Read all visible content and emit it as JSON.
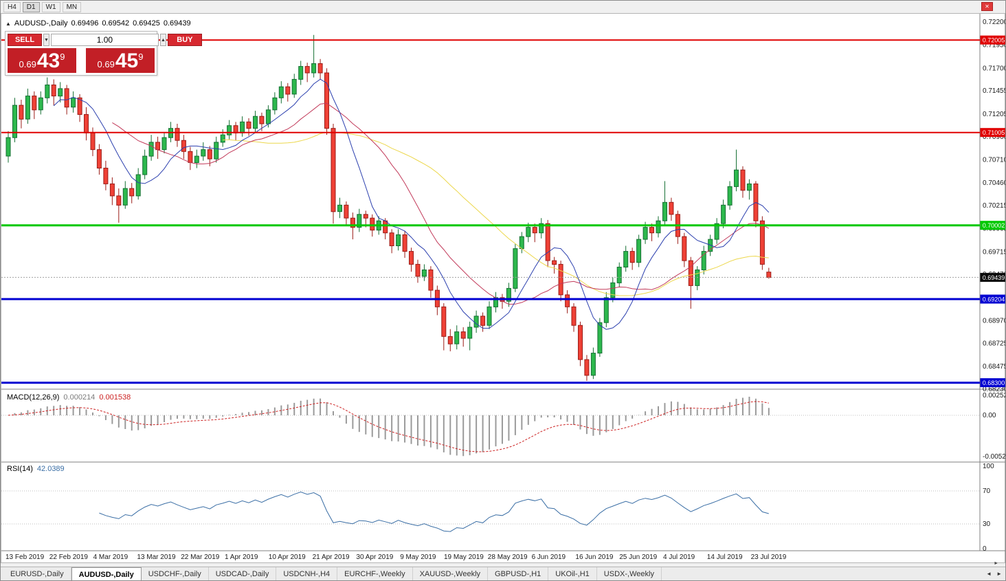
{
  "toolbar": {
    "timeframes": [
      {
        "label": "H4",
        "active": false
      },
      {
        "label": "D1",
        "active": true
      },
      {
        "label": "W1",
        "active": false
      },
      {
        "label": "MN",
        "active": false
      }
    ]
  },
  "window": {
    "close_glyph": "✕"
  },
  "icons": {
    "collapse": "▲",
    "step_down": "▼",
    "step_up": "▲",
    "scroll_right": "►",
    "tab_left": "◄",
    "tab_right": "►"
  },
  "chart_header": {
    "symbol": "AUDUSD-,Daily",
    "open": "0.69496",
    "high": "0.69542",
    "low": "0.69425",
    "close": "0.69439"
  },
  "trade_panel": {
    "sell_label": "SELL",
    "buy_label": "BUY",
    "volume": "1.00",
    "sell_price": {
      "prefix": "0.69",
      "big": "43",
      "sup": "9"
    },
    "buy_price": {
      "prefix": "0.69",
      "big": "45",
      "sup": "9"
    }
  },
  "price_axis": {
    "labels": [
      "0.72200",
      "0.71950",
      "0.71700",
      "0.71455",
      "0.71205",
      "0.70960",
      "0.70710",
      "0.70460",
      "0.70215",
      "0.69965",
      "0.69715",
      "0.69470",
      "0.69220",
      "0.68970",
      "0.68725",
      "0.68475",
      "0.68230"
    ]
  },
  "time_axis": {
    "labels": [
      "13 Feb 2019",
      "22 Feb 2019",
      "4 Mar 2019",
      "13 Mar 2019",
      "22 Mar 2019",
      "1 Apr 2019",
      "10 Apr 2019",
      "21 Apr 2019",
      "30 Apr 2019",
      "9 May 2019",
      "19 May 2019",
      "28 May 2019",
      "6 Jun 2019",
      "16 Jun 2019",
      "25 Jun 2019",
      "4 Jul 2019",
      "14 Jul 2019",
      "23 Jul 2019"
    ]
  },
  "levels": [
    {
      "label": "0.72005",
      "price": 0.72005,
      "color": "#e00000",
      "width": 2
    },
    {
      "label": "0.71005",
      "price": 0.71005,
      "color": "#e00000",
      "width": 2
    },
    {
      "label": "0.70002",
      "price": 0.70002,
      "color": "#00c800",
      "width": 3
    },
    {
      "label": "0.69204",
      "price": 0.69204,
      "color": "#0000d2",
      "width": 3
    },
    {
      "label": "0.68300",
      "price": 0.683,
      "color": "#0000d2",
      "width": 3
    }
  ],
  "current_price": {
    "label": "0.69439",
    "price": 0.69439,
    "bg": "#0a0a0a"
  },
  "indicators": {
    "macd": {
      "name": "MACD(12,26,9)",
      "value_main": "0.000214",
      "value_signal": "0.001538",
      "axis_labels": [
        "0.002522",
        "0.00",
        "-0.005234"
      ],
      "axis_values": [
        0.002522,
        0,
        -0.005234
      ],
      "fast": 12,
      "slow": 26,
      "signal": 9
    },
    "rsi": {
      "name": "RSI(14)",
      "value": "42.0389",
      "axis_labels": [
        "100",
        "70",
        "30",
        "0"
      ],
      "axis_values": [
        100,
        70,
        30,
        0
      ],
      "guides": [
        70,
        30
      ],
      "period": 14
    }
  },
  "tabs": [
    {
      "label": "EURUSD-,Daily",
      "active": false
    },
    {
      "label": "AUDUSD-,Daily",
      "active": true
    },
    {
      "label": "USDCHF-,Daily",
      "active": false
    },
    {
      "label": "USDCAD-,Daily",
      "active": false
    },
    {
      "label": "USDCNH-,H4",
      "active": false
    },
    {
      "label": "EURCHF-,Weekly",
      "active": false
    },
    {
      "label": "XAUUSD-,Weekly",
      "active": false
    },
    {
      "label": "GBPUSD-,H1",
      "active": false
    },
    {
      "label": "UKOil-,H1",
      "active": false
    },
    {
      "label": "USDX-,Weekly",
      "active": false
    }
  ],
  "colors": {
    "up_fill": "#2db84d",
    "up_border": "#156f33",
    "down_fill": "#ef4136",
    "down_border": "#9b1c17",
    "ma_fast": "#2b3fae",
    "ma_mid": "#c23a5a",
    "ma_slow": "#ecd74b",
    "macd_hist": "#9a9a9a",
    "macd_signal": "#cc2222",
    "rsi_line": "#3a6ea5",
    "grid_dotted": "#bdbdbd",
    "current_line": "#a0a0a0",
    "separator": "#808080"
  },
  "chart_data": {
    "type": "candlestick",
    "symbol": "AUDUSD-",
    "timeframe": "Daily",
    "price_range": [
      0.6823,
      0.722
    ],
    "moving_averages": [
      {
        "period": 8,
        "color_key": "ma_fast"
      },
      {
        "period": 17,
        "color_key": "ma_mid"
      },
      {
        "period": 34,
        "color_key": "ma_slow"
      }
    ],
    "candles": [
      [
        0.7075,
        0.7102,
        0.7068,
        0.7095
      ],
      [
        0.7095,
        0.7138,
        0.709,
        0.713
      ],
      [
        0.713,
        0.7136,
        0.7105,
        0.7115
      ],
      [
        0.7115,
        0.7148,
        0.711,
        0.714
      ],
      [
        0.714,
        0.7145,
        0.7115,
        0.7125
      ],
      [
        0.7125,
        0.7145,
        0.712,
        0.7138
      ],
      [
        0.7138,
        0.716,
        0.7132,
        0.7152
      ],
      [
        0.7152,
        0.7158,
        0.713,
        0.714
      ],
      [
        0.714,
        0.7155,
        0.7133,
        0.7148
      ],
      [
        0.7148,
        0.7152,
        0.712,
        0.7128
      ],
      [
        0.7128,
        0.7145,
        0.7122,
        0.7138
      ],
      [
        0.7138,
        0.7142,
        0.7112,
        0.712
      ],
      [
        0.712,
        0.7128,
        0.7092,
        0.71
      ],
      [
        0.71,
        0.7106,
        0.7075,
        0.7082
      ],
      [
        0.7082,
        0.7088,
        0.7055,
        0.7062
      ],
      [
        0.7062,
        0.707,
        0.7038,
        0.7045
      ],
      [
        0.7045,
        0.7052,
        0.7022,
        0.7032
      ],
      [
        0.7032,
        0.704,
        0.7003,
        0.7022
      ],
      [
        0.7022,
        0.7048,
        0.7018,
        0.704
      ],
      [
        0.704,
        0.7046,
        0.7024,
        0.7032
      ],
      [
        0.7032,
        0.7062,
        0.7028,
        0.7055
      ],
      [
        0.7055,
        0.7082,
        0.705,
        0.7075
      ],
      [
        0.7075,
        0.7098,
        0.707,
        0.709
      ],
      [
        0.709,
        0.7096,
        0.7072,
        0.7082
      ],
      [
        0.7082,
        0.71,
        0.7078,
        0.7095
      ],
      [
        0.7095,
        0.7112,
        0.709,
        0.7105
      ],
      [
        0.7105,
        0.711,
        0.7085,
        0.7092
      ],
      [
        0.7092,
        0.7098,
        0.7072,
        0.708
      ],
      [
        0.708,
        0.7085,
        0.706,
        0.7068
      ],
      [
        0.7068,
        0.7082,
        0.7062,
        0.7075
      ],
      [
        0.7075,
        0.709,
        0.707,
        0.7082
      ],
      [
        0.7082,
        0.7086,
        0.7064,
        0.7072
      ],
      [
        0.7072,
        0.7096,
        0.7068,
        0.709
      ],
      [
        0.709,
        0.7104,
        0.7085,
        0.7098
      ],
      [
        0.7098,
        0.7114,
        0.7093,
        0.7108
      ],
      [
        0.7108,
        0.7112,
        0.7092,
        0.71
      ],
      [
        0.71,
        0.7118,
        0.7096,
        0.7112
      ],
      [
        0.7112,
        0.7116,
        0.7097,
        0.7105
      ],
      [
        0.7105,
        0.7124,
        0.71,
        0.7118
      ],
      [
        0.7118,
        0.7122,
        0.7102,
        0.711
      ],
      [
        0.711,
        0.713,
        0.7106,
        0.7125
      ],
      [
        0.7125,
        0.7144,
        0.712,
        0.7138
      ],
      [
        0.7138,
        0.7156,
        0.7132,
        0.715
      ],
      [
        0.715,
        0.7154,
        0.7134,
        0.7142
      ],
      [
        0.7142,
        0.7164,
        0.7138,
        0.7158
      ],
      [
        0.7158,
        0.7178,
        0.7152,
        0.7172
      ],
      [
        0.7172,
        0.7176,
        0.7155,
        0.7165
      ],
      [
        0.7165,
        0.7206,
        0.716,
        0.7175
      ],
      [
        0.7175,
        0.718,
        0.7158,
        0.7165
      ],
      [
        0.7165,
        0.717,
        0.7098,
        0.7105
      ],
      [
        0.7105,
        0.711,
        0.7002,
        0.7015
      ],
      [
        0.7015,
        0.703,
        0.7008,
        0.7022
      ],
      [
        0.7022,
        0.7026,
        0.7,
        0.7008
      ],
      [
        0.7008,
        0.7014,
        0.6985,
        0.6998
      ],
      [
        0.6998,
        0.7018,
        0.6993,
        0.7012
      ],
      [
        0.7012,
        0.7016,
        0.6998,
        0.7008
      ],
      [
        0.7008,
        0.7012,
        0.6988,
        0.6995
      ],
      [
        0.6995,
        0.701,
        0.699,
        0.7005
      ],
      [
        0.7005,
        0.7008,
        0.6985,
        0.6992
      ],
      [
        0.6992,
        0.6996,
        0.697,
        0.6978
      ],
      [
        0.6978,
        0.6996,
        0.6973,
        0.699
      ],
      [
        0.699,
        0.6994,
        0.6965,
        0.6972
      ],
      [
        0.6972,
        0.6976,
        0.695,
        0.6958
      ],
      [
        0.6958,
        0.6963,
        0.6938,
        0.6945
      ],
      [
        0.6945,
        0.6958,
        0.694,
        0.6952
      ],
      [
        0.6952,
        0.6956,
        0.6922,
        0.693
      ],
      [
        0.693,
        0.6935,
        0.6903,
        0.6912
      ],
      [
        0.6912,
        0.6916,
        0.6865,
        0.688
      ],
      [
        0.688,
        0.6888,
        0.6864,
        0.6872
      ],
      [
        0.6872,
        0.6892,
        0.6866,
        0.6885
      ],
      [
        0.6885,
        0.689,
        0.6869,
        0.6878
      ],
      [
        0.6878,
        0.6896,
        0.6865,
        0.689
      ],
      [
        0.689,
        0.6908,
        0.6884,
        0.6902
      ],
      [
        0.6902,
        0.6906,
        0.6885,
        0.6892
      ],
      [
        0.6892,
        0.6918,
        0.6888,
        0.6912
      ],
      [
        0.6912,
        0.6928,
        0.6906,
        0.6922
      ],
      [
        0.6922,
        0.6926,
        0.691,
        0.6918
      ],
      [
        0.6918,
        0.6938,
        0.6912,
        0.6932
      ],
      [
        0.6932,
        0.698,
        0.6928,
        0.6975
      ],
      [
        0.6975,
        0.6993,
        0.697,
        0.6988
      ],
      [
        0.6988,
        0.7003,
        0.6982,
        0.6998
      ],
      [
        0.6998,
        0.7002,
        0.6982,
        0.6992
      ],
      [
        0.6992,
        0.7008,
        0.6986,
        0.7002
      ],
      [
        0.7002,
        0.7006,
        0.6955,
        0.6962
      ],
      [
        0.6962,
        0.6966,
        0.6948,
        0.6958
      ],
      [
        0.6958,
        0.6962,
        0.6918,
        0.6925
      ],
      [
        0.6925,
        0.693,
        0.6905,
        0.6912
      ],
      [
        0.6912,
        0.6916,
        0.6885,
        0.6892
      ],
      [
        0.6892,
        0.6896,
        0.6848,
        0.6855
      ],
      [
        0.6855,
        0.686,
        0.6832,
        0.6838
      ],
      [
        0.6838,
        0.6868,
        0.6834,
        0.6862
      ],
      [
        0.6862,
        0.69,
        0.6858,
        0.6895
      ],
      [
        0.6895,
        0.6928,
        0.689,
        0.6922
      ],
      [
        0.6922,
        0.6944,
        0.6917,
        0.6938
      ],
      [
        0.6938,
        0.696,
        0.6933,
        0.6955
      ],
      [
        0.6955,
        0.6978,
        0.695,
        0.6972
      ],
      [
        0.6972,
        0.6976,
        0.6952,
        0.696
      ],
      [
        0.696,
        0.699,
        0.6955,
        0.6985
      ],
      [
        0.6985,
        0.7004,
        0.698,
        0.6998
      ],
      [
        0.6998,
        0.7002,
        0.6983,
        0.6992
      ],
      [
        0.6992,
        0.701,
        0.6987,
        0.7005
      ],
      [
        0.7005,
        0.7048,
        0.7,
        0.7025
      ],
      [
        0.7025,
        0.703,
        0.7005,
        0.7012
      ],
      [
        0.7012,
        0.7016,
        0.698,
        0.6988
      ],
      [
        0.6988,
        0.6992,
        0.6955,
        0.6962
      ],
      [
        0.6962,
        0.6966,
        0.691,
        0.6935
      ],
      [
        0.6935,
        0.6956,
        0.693,
        0.6952
      ],
      [
        0.6952,
        0.6978,
        0.6947,
        0.6972
      ],
      [
        0.6972,
        0.699,
        0.6967,
        0.6985
      ],
      [
        0.6985,
        0.7008,
        0.698,
        0.7002
      ],
      [
        0.7002,
        0.7028,
        0.6997,
        0.7022
      ],
      [
        0.7022,
        0.7048,
        0.7017,
        0.7042
      ],
      [
        0.7042,
        0.7082,
        0.7037,
        0.706
      ],
      [
        0.706,
        0.7064,
        0.703,
        0.7038
      ],
      [
        0.7038,
        0.705,
        0.7028,
        0.7045
      ],
      [
        0.7045,
        0.7048,
        0.6998,
        0.7005
      ],
      [
        0.7005,
        0.701,
        0.6952,
        0.6958
      ],
      [
        0.69496,
        0.69542,
        0.69425,
        0.69439
      ]
    ]
  }
}
